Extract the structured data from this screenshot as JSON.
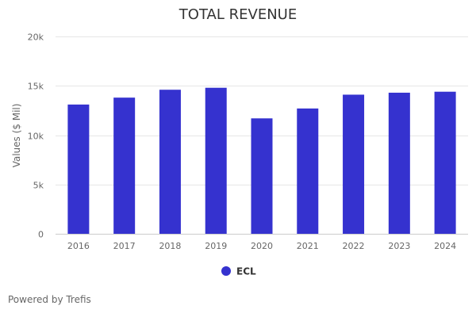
{
  "chart_data": {
    "type": "bar",
    "title": "TOTAL REVENUE",
    "xlabel": "",
    "ylabel": "Values ($ Mil)",
    "categories": [
      "2016",
      "2017",
      "2018",
      "2019",
      "2020",
      "2021",
      "2022",
      "2023",
      "2024"
    ],
    "series": [
      {
        "name": "ECL",
        "color": "#3532cf",
        "values": [
          13100,
          13800,
          14600,
          14800,
          11700,
          12700,
          14100,
          14300,
          14400
        ]
      }
    ],
    "ylim": [
      0,
      20000
    ],
    "yticks": [
      0,
      5000,
      10000,
      15000,
      20000
    ],
    "ytick_labels": [
      "0",
      "5k",
      "10k",
      "15k",
      "20k"
    ],
    "grid": true,
    "legend": "bottom-center"
  },
  "credits": "Powered by Trefis"
}
